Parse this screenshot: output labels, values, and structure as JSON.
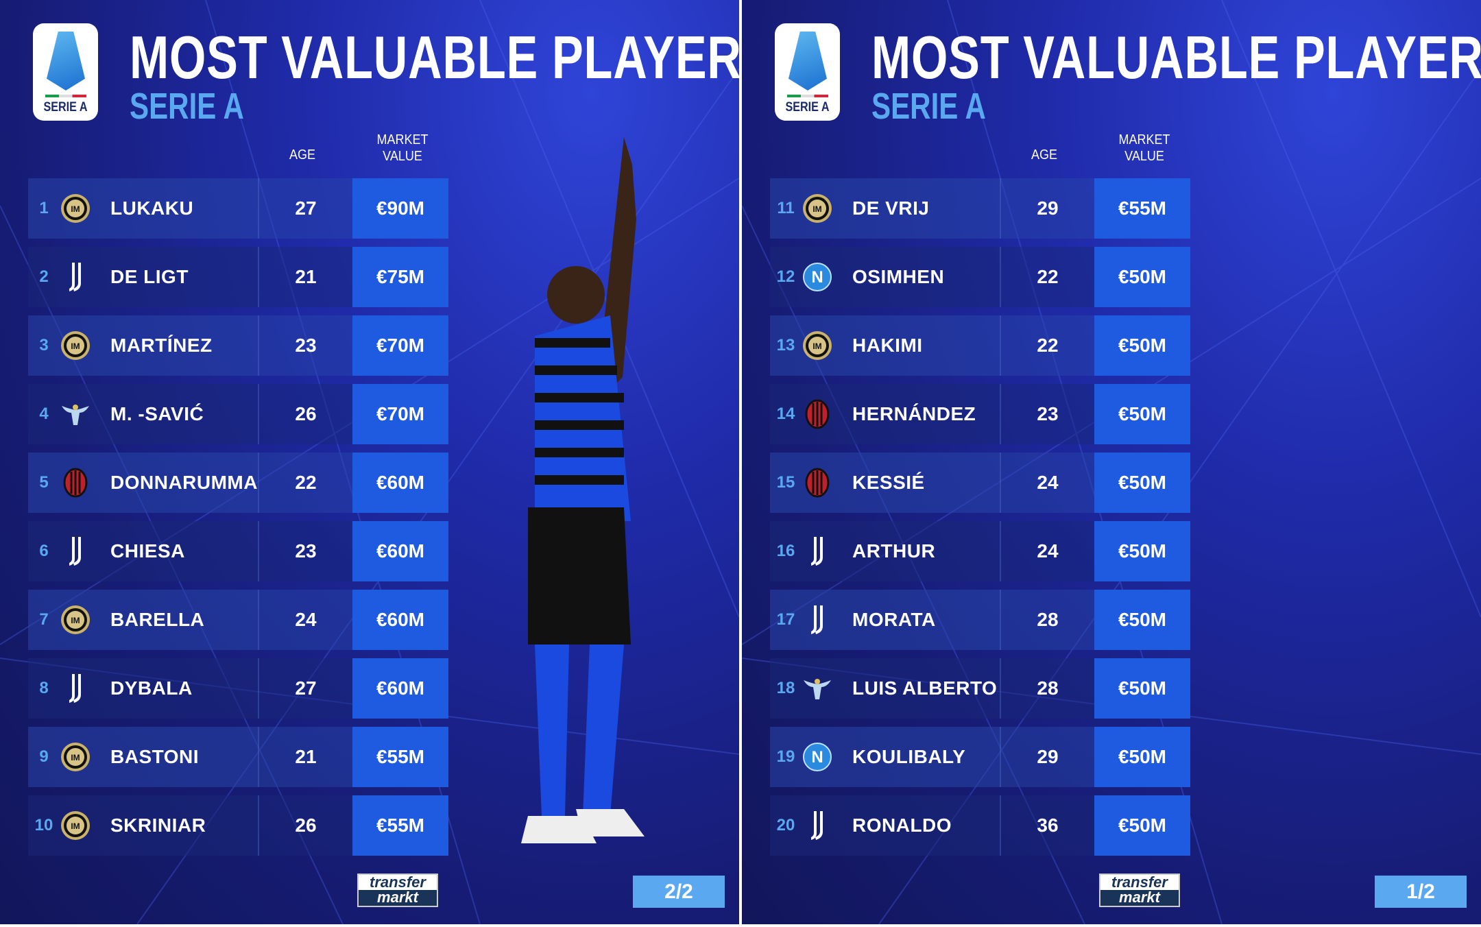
{
  "panels": [
    {
      "title": "MOST VALUABLE PLAYERS",
      "subtitle": "SERIE A",
      "logo_text": "SERIE A",
      "age_header": "AGE",
      "value_header_1": "MARKET",
      "value_header_2": "VALUE",
      "page": "2/2",
      "source_logo": [
        "transfer",
        "markt"
      ],
      "photo_kit": "inter",
      "rows": [
        {
          "rank": "1",
          "club": "inter",
          "name": "LUKAKU",
          "age": "27",
          "value": "€90M"
        },
        {
          "rank": "2",
          "club": "juventus",
          "name": "DE LIGT",
          "age": "21",
          "value": "€75M"
        },
        {
          "rank": "3",
          "club": "inter",
          "name": "MARTÍNEZ",
          "age": "23",
          "value": "€70M"
        },
        {
          "rank": "4",
          "club": "lazio",
          "name": "M. -SAVIĆ",
          "age": "26",
          "value": "€70M"
        },
        {
          "rank": "5",
          "club": "milan",
          "name": "DONNARUMMA",
          "age": "22",
          "value": "€60M"
        },
        {
          "rank": "6",
          "club": "juventus",
          "name": "CHIESA",
          "age": "23",
          "value": "€60M"
        },
        {
          "rank": "7",
          "club": "inter",
          "name": "BARELLA",
          "age": "24",
          "value": "€60M"
        },
        {
          "rank": "8",
          "club": "juventus",
          "name": "DYBALA",
          "age": "27",
          "value": "€60M"
        },
        {
          "rank": "9",
          "club": "inter",
          "name": "BASTONI",
          "age": "21",
          "value": "€55M"
        },
        {
          "rank": "10",
          "club": "inter",
          "name": "SKRINIAR",
          "age": "26",
          "value": "€55M"
        }
      ]
    },
    {
      "title": "MOST VALUABLE PLAYERS",
      "subtitle": "SERIE A",
      "logo_text": "SERIE A",
      "age_header": "AGE",
      "value_header_1": "MARKET",
      "value_header_2": "VALUE",
      "page": "1/2",
      "source_logo": [
        "transfer",
        "markt"
      ],
      "photo_kit": "juventus",
      "rows": [
        {
          "rank": "11",
          "club": "inter",
          "name": "DE VRIJ",
          "age": "29",
          "value": "€55M"
        },
        {
          "rank": "12",
          "club": "napoli",
          "name": "OSIMHEN",
          "age": "22",
          "value": "€50M"
        },
        {
          "rank": "13",
          "club": "inter",
          "name": "HAKIMI",
          "age": "22",
          "value": "€50M"
        },
        {
          "rank": "14",
          "club": "milan",
          "name": "HERNÁNDEZ",
          "age": "23",
          "value": "€50M"
        },
        {
          "rank": "15",
          "club": "milan",
          "name": "KESSIÉ",
          "age": "24",
          "value": "€50M"
        },
        {
          "rank": "16",
          "club": "juventus",
          "name": "ARTHUR",
          "age": "24",
          "value": "€50M"
        },
        {
          "rank": "17",
          "club": "juventus",
          "name": "MORATA",
          "age": "28",
          "value": "€50M"
        },
        {
          "rank": "18",
          "club": "lazio",
          "name": "LUIS ALBERTO",
          "age": "28",
          "value": "€50M"
        },
        {
          "rank": "19",
          "club": "napoli",
          "name": "KOULIBALY",
          "age": "29",
          "value": "€50M"
        },
        {
          "rank": "20",
          "club": "juventus",
          "name": "RONALDO",
          "age": "36",
          "value": "€50M"
        }
      ]
    }
  ],
  "colors": {
    "accent": "#5aa8f0",
    "value_cell": "#1e5be0",
    "bg_dark": "#12165a",
    "bg_light": "#2f44d8"
  }
}
